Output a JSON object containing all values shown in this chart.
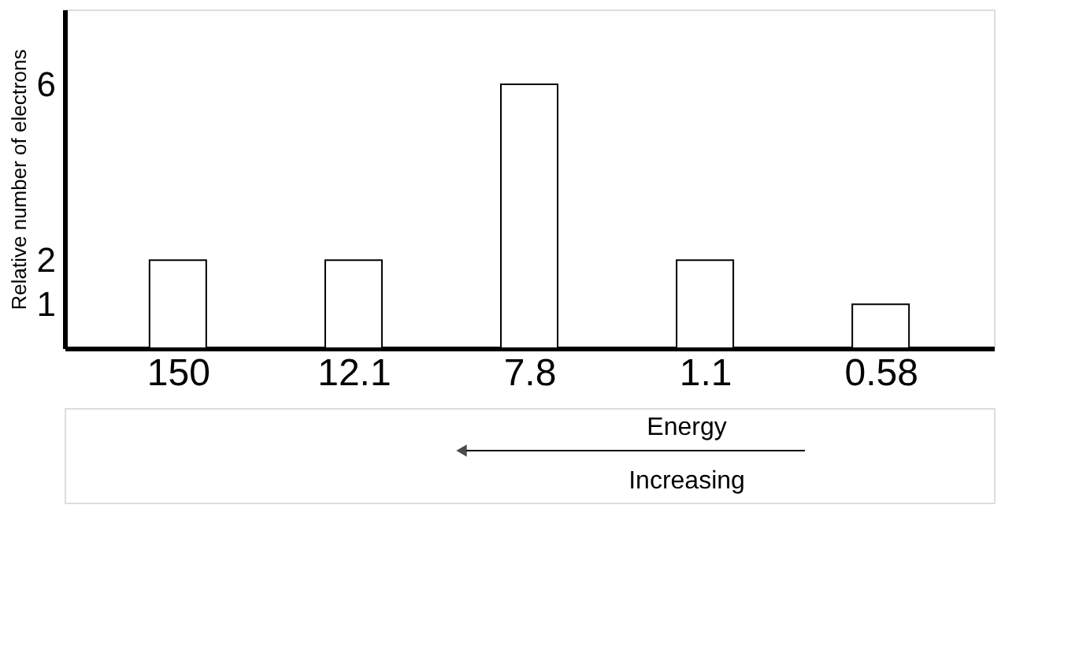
{
  "chart_data": {
    "type": "bar",
    "ylabel": "Relative number of electrons",
    "categories": [
      "150",
      "12.1",
      "7.8",
      "1.1",
      "0.58"
    ],
    "values": [
      2,
      2,
      6,
      2,
      1
    ],
    "color": "#000000",
    "ylim": [
      0,
      7.7
    ],
    "yticks": [
      1,
      2,
      6
    ],
    "grid": false,
    "annotations": [
      "Energy",
      "Increasing"
    ]
  }
}
